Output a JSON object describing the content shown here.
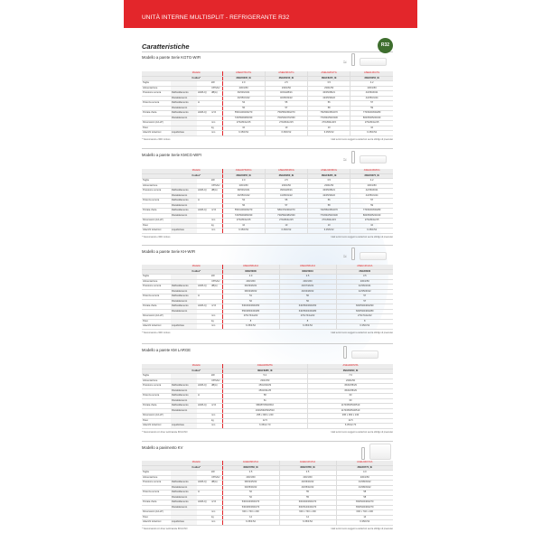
{
  "header": {
    "title": "UNITÀ INTERNE MULTISPLIT - REFRIGERANTE R32",
    "badge": "R32"
  },
  "page_heading": "Caratteristiche",
  "icons": {
    "wifi": "wifi-icon",
    "remote": "remote-control-icon",
    "unit": "indoor-unit-icon"
  },
  "colors": {
    "accent": "#e3262b",
    "badge": "#3e6e2e"
  },
  "row_labels": {
    "modello": "Modello",
    "codice": "Codice*"
  },
  "sections": [
    {
      "title": "Modello a parete Serie KGTG-WIFI",
      "wifi": true,
      "floor": false,
      "models": [
        "ASEH07KGTG",
        "ASEH09KGTG",
        "ASEH12KGTG",
        "ASEH14KGTG"
      ],
      "codes": [
        "3NGF8235_IE",
        "3NGF8240_IE",
        "3NGF8245_IE",
        "3NGF8250_IE"
      ],
      "rows": [
        {
          "label": "Taglia",
          "sub": "",
          "unit1": "",
          "unit": "kW",
          "values": [
            "2.0",
            "2.5",
            "3.5",
            "4.2"
          ]
        },
        {
          "label": "Alimentazione",
          "sub": "",
          "unit1": "",
          "unit": "V/Ph/Hz",
          "values": [
            "230/1/50",
            "230/1/50",
            "230/1/50",
            "230/1/50"
          ]
        },
        {
          "label": "Pressione sonora",
          "sub": "Raffreddamento",
          "unit1": "H/M/L/Q",
          "unit": "dB(A)",
          "values": [
            "39/33/24/21",
            "40/34/28/21",
            "40/35/28/21",
            "43/36/30/21"
          ]
        },
        {
          "label": "",
          "sub": "Riscaldamento",
          "unit1": "",
          "unit": "",
          "values": [
            "40/35/31/22",
            "40/35/33/22",
            "42/35/30/22",
            "44/35/31/24"
          ]
        },
        {
          "label": "Potenza sonora",
          "sub": "Raffreddamento",
          "unit1": "H",
          "unit": "",
          "values": [
            "54",
            "55",
            "56",
            "57"
          ]
        },
        {
          "label": "",
          "sub": "Riscaldamento",
          "unit1": "",
          "unit": "",
          "values": [
            "56",
            "57",
            "58",
            "59"
          ]
        },
        {
          "label": "Portata d'aria",
          "sub": "Raffreddamento",
          "unit1": "H/M/L/Q",
          "unit": "m³/h",
          "values": [
            "550/440/400/270",
            "750/550/450/270",
            "760/590/450/270",
            "770/600/450/280"
          ]
        },
        {
          "label": "",
          "sub": "Riscaldamento",
          "unit1": "",
          "unit": "",
          "values": [
            "720/590/480/330",
            "700/540/470/330",
            "770/640/520/330",
            "800/650/520/340"
          ]
        },
        {
          "label": "Dimensioni (AxLxP)",
          "sub": "",
          "unit1": "",
          "unit": "mm",
          "values": [
            "270x834x215",
            "270x834x215",
            "270x834x215",
            "270x834x215"
          ]
        },
        {
          "label": "Peso",
          "sub": "",
          "unit1": "",
          "unit": "kg",
          "values": [
            "10",
            "10",
            "10",
            "10"
          ]
        },
        {
          "label": "Attacchi tubazioni",
          "sub": "Liquido/Gas",
          "unit1": "",
          "unit": "mm",
          "values": [
            "6.35/9.52",
            "6.35/9.52",
            "6.35/9.52",
            "6.35/9.52"
          ]
        }
      ],
      "foot_left": "* Telecomando e WiFi incluso",
      "foot_right": "I dati tecnici sono soggetti a variazioni senza obbligo di preavviso"
    },
    {
      "title": "Modello a parete Serie KMCG-WIFI",
      "wifi": true,
      "floor": false,
      "models": [
        "ASEH07KMCG",
        "ASEH09KMCG",
        "ASEH12KMCG",
        "ASEH14KMCG"
      ],
      "codes": [
        "3NGF8255_IE",
        "3NGF8260_IE",
        "3NGF8265_IE",
        "3NGF8270_IE"
      ],
      "rows": [
        {
          "label": "Taglia",
          "sub": "",
          "unit1": "",
          "unit": "kW",
          "values": [
            "2.0",
            "2.5",
            "3.5",
            "4.2"
          ]
        },
        {
          "label": "Alimentazione",
          "sub": "",
          "unit1": "",
          "unit": "V/Ph/Hz",
          "values": [
            "230/1/50",
            "230/1/50",
            "230/1/50",
            "230/1/50"
          ]
        },
        {
          "label": "Pressione sonora",
          "sub": "Raffreddamento",
          "unit1": "H/M/L/Q",
          "unit": "dB(A)",
          "values": [
            "38/33/24/21",
            "39/34/26/21",
            "40/35/28/21",
            "42/36/30/21"
          ]
        },
        {
          "label": "",
          "sub": "Riscaldamento",
          "unit1": "",
          "unit": "",
          "values": [
            "40/35/31/22",
            "41/35/31/22",
            "42/35/30/22",
            "44/35/31/24"
          ]
        },
        {
          "label": "Potenza sonora",
          "sub": "Raffreddamento",
          "unit1": "H",
          "unit": "",
          "values": [
            "54",
            "55",
            "56",
            "57"
          ]
        },
        {
          "label": "",
          "sub": "Riscaldamento",
          "unit1": "",
          "unit": "",
          "values": [
            "56",
            "57",
            "58",
            "59"
          ]
        },
        {
          "label": "Portata d'aria",
          "sub": "Raffreddamento",
          "unit1": "H/M/L/Q",
          "unit": "m³/h",
          "values": [
            "550/440/400/270",
            "580/470/400/270",
            "720/560/450/270",
            "770/600/450/280"
          ]
        },
        {
          "label": "",
          "sub": "Riscaldamento",
          "unit1": "",
          "unit": "",
          "values": [
            "720/590/480/330",
            "730/590/480/330",
            "770/640/520/330",
            "800/650/520/340"
          ]
        },
        {
          "label": "Dimensioni (AxLxP)",
          "sub": "",
          "unit1": "",
          "unit": "mm",
          "values": [
            "270x834x215",
            "270x834x215",
            "270x834x215",
            "270x834x215"
          ]
        },
        {
          "label": "Peso",
          "sub": "",
          "unit1": "",
          "unit": "kg",
          "values": [
            "10",
            "10",
            "10",
            "10"
          ]
        },
        {
          "label": "Attacchi tubazioni",
          "sub": "Liquido/Gas",
          "unit1": "",
          "unit": "mm",
          "values": [
            "6.35/9.52",
            "6.35/9.52",
            "6.35/9.52",
            "6.35/9.52"
          ]
        }
      ],
      "foot_left": "* Telecomando e WiFi incluso",
      "foot_right": "I dati tecnici sono soggetti a variazioni senza obbligo di preavviso"
    },
    {
      "title": "Modello a parete Serie KH-WIFI",
      "wifi": true,
      "floor": false,
      "models": [
        "ASEH09KHCA",
        "ASEH09KHCA",
        "ASEH12KHCA"
      ],
      "codes": [
        "3NGF8000",
        "3NGF8010",
        "3NGF8030"
      ],
      "rows": [
        {
          "label": "Taglia",
          "sub": "",
          "unit1": "",
          "unit": "kW",
          "values": [
            "2.0",
            "2.5",
            "3.5"
          ]
        },
        {
          "label": "Alimentazione",
          "sub": "",
          "unit1": "",
          "unit": "V/Ph/Hz",
          "values": [
            "230/1/50",
            "230/1/50",
            "230/1/50"
          ]
        },
        {
          "label": "Pressione sonora",
          "sub": "Raffreddamento",
          "unit1": "H/M/L/Q",
          "unit": "dB(A)",
          "values": [
            "36/33/26/21",
            "40/37/26/21",
            "42/36/32/21"
          ]
        },
        {
          "label": "",
          "sub": "Riscaldamento",
          "unit1": "",
          "unit": "",
          "values": [
            "38/34/28/22",
            "40/34/28/22",
            "42/35/30/22"
          ]
        },
        {
          "label": "Potenza sonora",
          "sub": "Raffreddamento",
          "unit1": "H",
          "unit": "",
          "values": [
            "51",
            "56",
            "57"
          ]
        },
        {
          "label": "",
          "sub": "Riscaldamento",
          "unit1": "",
          "unit": "",
          "values": [
            "52",
            "56",
            "57"
          ]
        },
        {
          "label": "Portata d'aria",
          "sub": "Raffreddamento",
          "unit1": "H/M/L/Q",
          "unit": "m³/h",
          "values": [
            "530/460/390/250",
            "640/560/390/250",
            "660/530/460/290"
          ]
        },
        {
          "label": "",
          "sub": "Riscaldamento",
          "unit1": "",
          "unit": "",
          "values": [
            "550/480/430/280",
            "640/560/430/280",
            "660/530/460/280"
          ]
        },
        {
          "label": "Dimensioni (AxLxP)",
          "sub": "",
          "unit1": "",
          "unit": "mm",
          "values": [
            "270x744x222",
            "270x744x222",
            "270x744x222"
          ]
        },
        {
          "label": "Peso",
          "sub": "",
          "unit1": "",
          "unit": "kg",
          "values": [
            "8",
            "8",
            "8"
          ]
        },
        {
          "label": "Attacchi tubazioni",
          "sub": "Liquido/Gas",
          "unit1": "",
          "unit": "mm",
          "values": [
            "6.35/9.52",
            "6.35/9.52",
            "6.35/9.52"
          ]
        }
      ],
      "foot_left": "* Telecomando e WiFi incluso",
      "foot_right": "I dati tecnici sono soggetti a variazioni senza obbligo di preavviso"
    },
    {
      "title": "Modello a parete KM LARGE",
      "wifi": false,
      "floor": false,
      "models": [
        "ASEH18KMTA",
        "ASEH24KMTA"
      ],
      "codes": [
        "3NGF8285_IE",
        "3NGF8290_IE"
      ],
      "rows": [
        {
          "label": "Taglia",
          "sub": "",
          "unit1": "",
          "unit": "kW",
          "values": [
            "5.2",
            "7.0"
          ]
        },
        {
          "label": "Alimentazione",
          "sub": "",
          "unit1": "",
          "unit": "V/Ph/Hz",
          "values": [
            "230/1/50",
            "230/1/50"
          ]
        },
        {
          "label": "Pressione sonora",
          "sub": "Raffreddamento",
          "unit1": "H/M/L/Q",
          "unit": "dB(A)",
          "values": [
            "45/42/33/29",
            "45/40/35/29"
          ]
        },
        {
          "label": "",
          "sub": "Riscaldamento",
          "unit1": "",
          "unit": "",
          "values": [
            "45/40/31/25",
            "45/40/35/29"
          ]
        },
        {
          "label": "Potenza sonora",
          "sub": "Raffreddamento",
          "unit1": "H",
          "unit": "",
          "values": [
            "58",
            "63"
          ]
        },
        {
          "label": "",
          "sub": "Riscaldamento",
          "unit1": "",
          "unit": "",
          "values": [
            "61",
            "63"
          ]
        },
        {
          "label": "Portata d'aria",
          "sub": "Raffreddamento",
          "unit1": "H/M/L/Q",
          "unit": "m³/h",
          "values": [
            "980/870/540/510",
            "1170/950/540/510"
          ]
        },
        {
          "label": "",
          "sub": "Riscaldamento",
          "unit1": "",
          "unit": "",
          "values": [
            "1020/930/540/510",
            "1170/950/540/510"
          ]
        },
        {
          "label": "Dimensioni (AxLxP)",
          "sub": "",
          "unit1": "",
          "unit": "mm",
          "values": [
            "295 x 960 x 240",
            "295 x 960 x 240"
          ]
        },
        {
          "label": "Peso",
          "sub": "",
          "unit1": "",
          "unit": "kg",
          "values": [
            "12.5",
            "12.5"
          ]
        },
        {
          "label": "Attacchi tubazioni",
          "sub": "Liquido/Gas",
          "unit1": "",
          "unit": "mm",
          "values": [
            "6.35/12.70",
            "6.35/12.70"
          ]
        }
      ],
      "foot_left": "* Telecomando con timer settimanale INCLUSO",
      "foot_right": "I dati tecnici sono soggetti a variazioni senza obbligo di preavviso"
    },
    {
      "title": "Modello a pavimento KV",
      "wifi": false,
      "floor": true,
      "models": [
        "AGEH09KVCA",
        "AGEH12KVCA",
        "AGEH14KVCA"
      ],
      "codes": [
        "3NGF8760_IE",
        "3NGF8765_IE",
        "3NGF8770_IE"
      ],
      "rows": [
        {
          "label": "Taglia",
          "sub": "",
          "unit1": "",
          "unit": "kW",
          "values": [
            "2.5",
            "3.5",
            "4.0"
          ]
        },
        {
          "label": "Alimentazione",
          "sub": "",
          "unit1": "",
          "unit": "V/Ph/Hz",
          "values": [
            "230/1/50",
            "230/1/50",
            "230/1/50"
          ]
        },
        {
          "label": "Pressione sonora",
          "sub": "Raffreddamento",
          "unit1": "H/M/L/Q",
          "unit": "dB(A)",
          "values": [
            "38/32/25/22",
            "40/36/30/22",
            "43/38/33/22"
          ]
        },
        {
          "label": "",
          "sub": "Riscaldamento",
          "unit1": "",
          "unit": "",
          "values": [
            "39/35/30/22",
            "40/35/32/22",
            "43/38/33/22"
          ]
        },
        {
          "label": "Potenza sonora",
          "sub": "Raffreddamento",
          "unit1": "H",
          "unit": "",
          "values": [
            "52",
            "55",
            "58"
          ]
        },
        {
          "label": "",
          "sub": "Riscaldamento",
          "unit1": "",
          "unit": "",
          "values": [
            "52",
            "55",
            "58"
          ]
        },
        {
          "label": "Portata d'aria",
          "sub": "Raffreddamento",
          "unit1": "H/M/L/Q",
          "unit": "m³/h",
          "values": [
            "530/440/360/270",
            "600/490/390/270",
            "650/520/460/270"
          ]
        },
        {
          "label": "",
          "sub": "Riscaldamento",
          "unit1": "",
          "unit": "",
          "values": [
            "530/480/390/270",
            "600/510/430/270",
            "650/540/460/270"
          ]
        },
        {
          "label": "Dimensioni (AxLxP)",
          "sub": "",
          "unit1": "",
          "unit": "mm",
          "values": [
            "600 x 740 x 200",
            "600 x 740 x 200",
            "600 x 740 x 200"
          ]
        },
        {
          "label": "Peso",
          "sub": "",
          "unit1": "",
          "unit": "kg",
          "values": [
            "14",
            "14",
            "14"
          ]
        },
        {
          "label": "Attacchi tubazioni",
          "sub": "Liquido/Gas",
          "unit1": "",
          "unit": "mm",
          "values": [
            "6.35/9.52",
            "6.35/9.52",
            "6.35/9.52"
          ]
        }
      ],
      "foot_left": "* Telecomando con timer settimanale INCLUSO",
      "foot_right": "I dati tecnici sono soggetti a variazioni senza obbligo di preavviso"
    }
  ]
}
